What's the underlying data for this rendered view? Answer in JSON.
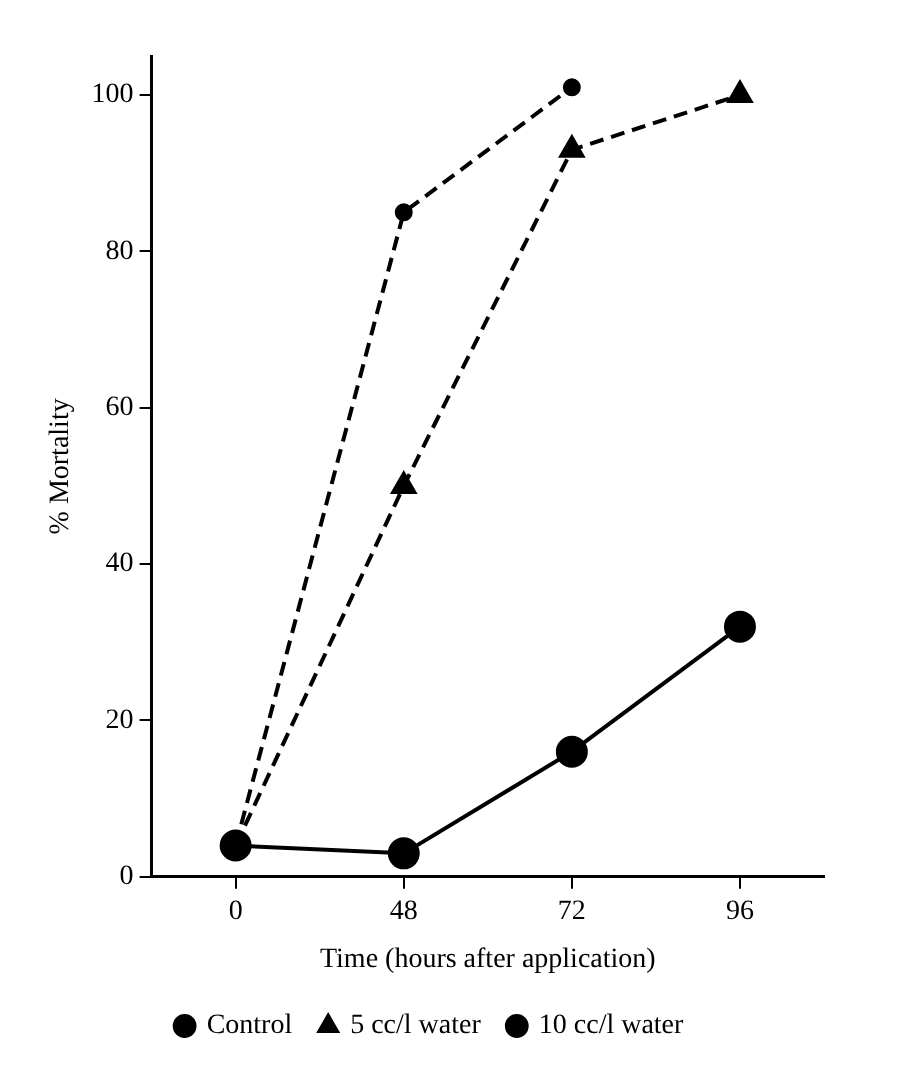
{
  "chart_data": {
    "type": "line",
    "xlabel": "Time (hours after application)",
    "ylabel": "% Mortality",
    "categories": [
      "0",
      "48",
      "72",
      "96"
    ],
    "series": [
      {
        "name": "Control",
        "color": "#000000",
        "marker": "circle",
        "line_style": "solid",
        "values": [
          4,
          3,
          16,
          32
        ]
      },
      {
        "name": "5 cc/l water",
        "color": "#000000",
        "marker": "triangle",
        "line_style": "dashed",
        "values": [
          4,
          50,
          93,
          100
        ]
      },
      {
        "name": "10 cc/l water",
        "color": "#000000",
        "marker": "circle",
        "line_style": "dashed",
        "values": [
          4,
          85,
          101,
          null
        ]
      }
    ],
    "ylim": [
      0,
      105
    ],
    "yticks": [
      0,
      20,
      40,
      60,
      80,
      100
    ],
    "grid": false,
    "legend": "bottom"
  }
}
